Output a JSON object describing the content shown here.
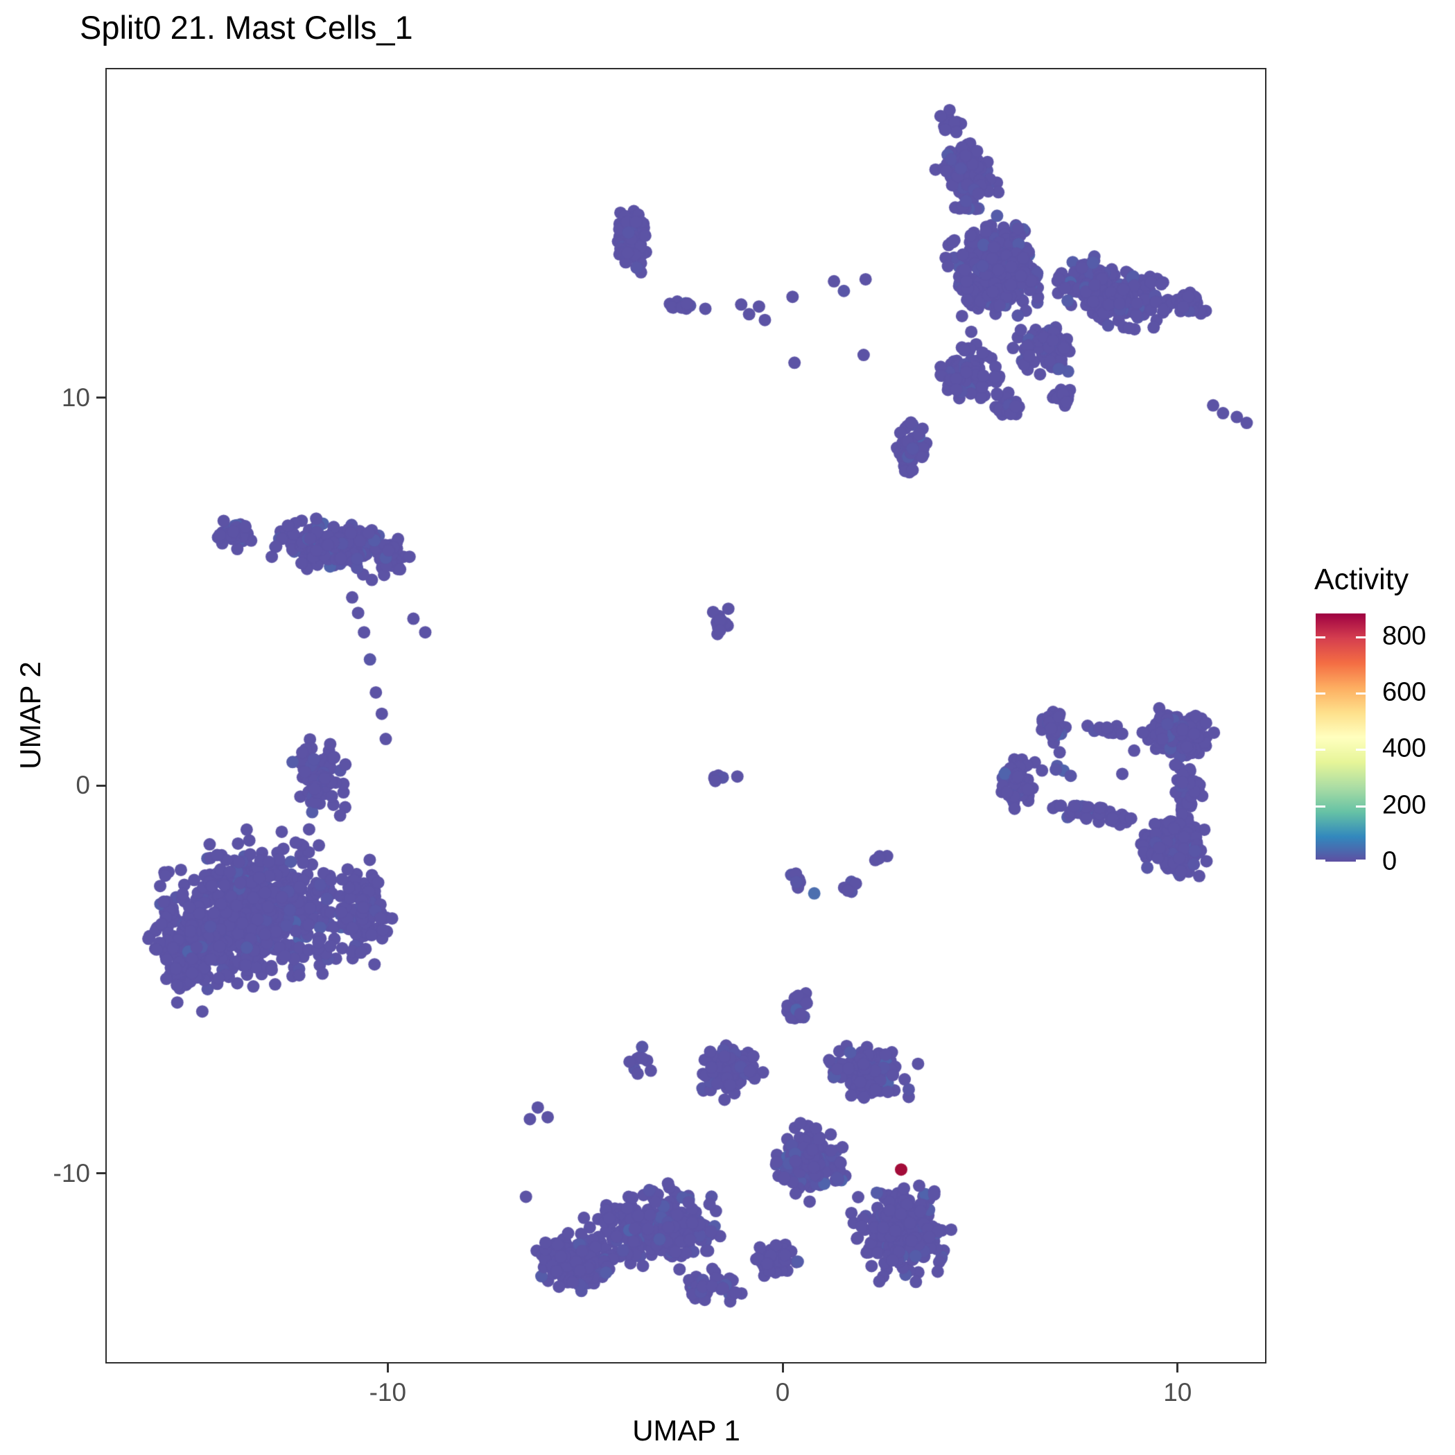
{
  "title": "Split0 21. Mast Cells_1",
  "chart_data": {
    "type": "scatter",
    "title": "Split0 21. Mast Cells_1",
    "xlabel": "UMAP 1",
    "ylabel": "UMAP 2",
    "xlim": [
      -17.15,
      12.25
    ],
    "ylim": [
      -14.9,
      18.5
    ],
    "x_ticks": [
      -10,
      0,
      10
    ],
    "y_ticks": [
      10,
      0,
      -10
    ],
    "grid": false,
    "point_radius_px": 9,
    "point_color_base": "#5C53A5",
    "point_color_variants": [
      "#5C53A5",
      "#5956A7",
      "#555CA9",
      "#5063AC"
    ],
    "legend": {
      "title": "Activity",
      "position": "right",
      "min": 0,
      "max": 880,
      "ticks": [
        800,
        600,
        400,
        200,
        0
      ],
      "colors": [
        "#5E4FA2",
        "#3288BD",
        "#66C2A5",
        "#ABDDA4",
        "#E6F598",
        "#FFFFBF",
        "#FEE08B",
        "#FDAE61",
        "#F46D43",
        "#D53E4F",
        "#9E0142"
      ]
    },
    "clusters": [
      {
        "id": "top-right-tip",
        "cx": 4.3,
        "cy": 17.1,
        "rx": 0.4,
        "ry": 0.4,
        "rot": 0,
        "n": 14
      },
      {
        "id": "top-right-spike",
        "cx": 4.7,
        "cy": 15.7,
        "rx": 0.8,
        "ry": 1.2,
        "rot": 15,
        "n": 140
      },
      {
        "id": "top-right-core",
        "cx": 5.4,
        "cy": 13.3,
        "rx": 1.4,
        "ry": 1.6,
        "rot": 10,
        "n": 340
      },
      {
        "id": "top-right-east",
        "cx": 8.3,
        "cy": 12.7,
        "rx": 1.8,
        "ry": 1.0,
        "rot": -18,
        "n": 240
      },
      {
        "id": "top-right-far-east",
        "cx": 10.4,
        "cy": 12.4,
        "rx": 0.7,
        "ry": 0.5,
        "rot": -25,
        "n": 28
      },
      {
        "id": "top-right-lower",
        "cx": 4.7,
        "cy": 10.6,
        "rx": 1.0,
        "ry": 0.9,
        "rot": 0,
        "n": 95
      },
      {
        "id": "top-right-lower-east",
        "cx": 6.6,
        "cy": 11.3,
        "rx": 0.95,
        "ry": 0.85,
        "rot": -10,
        "n": 80
      },
      {
        "id": "anvil-left",
        "cx": 3.2,
        "cy": 8.7,
        "rx": 0.55,
        "ry": 0.8,
        "rot": 0,
        "n": 45
      },
      {
        "id": "anvil-mid",
        "cx": 5.7,
        "cy": 9.8,
        "rx": 0.5,
        "ry": 0.45,
        "rot": 0,
        "n": 24
      },
      {
        "id": "anvil-right",
        "cx": 7.1,
        "cy": 10.0,
        "rx": 0.4,
        "ry": 0.35,
        "rot": 0,
        "n": 14
      },
      {
        "id": "top-mid-blob",
        "cx": -3.85,
        "cy": 14.1,
        "rx": 0.55,
        "ry": 1.0,
        "rot": 5,
        "n": 95
      },
      {
        "id": "top-mid-chain",
        "cx": -2.6,
        "cy": 12.4,
        "rx": 0.8,
        "ry": 0.16,
        "rot": -8,
        "n": 13
      },
      {
        "id": "center-blob",
        "cx": -1.6,
        "cy": 4.2,
        "rx": 0.32,
        "ry": 0.42,
        "rot": 0,
        "n": 14
      },
      {
        "id": "center-row",
        "cx": -1.5,
        "cy": 0.2,
        "rx": 0.55,
        "ry": 0.12,
        "rot": 0,
        "n": 6
      },
      {
        "id": "mid-chain",
        "cx": 0.35,
        "cy": -2.4,
        "rx": 0.45,
        "ry": 0.22,
        "rot": -35,
        "n": 6
      },
      {
        "id": "mid-trio",
        "cx": 1.75,
        "cy": -2.7,
        "rx": 0.33,
        "ry": 0.3,
        "rot": 0,
        "n": 5
      },
      {
        "id": "mid-pair",
        "cx": 2.4,
        "cy": -1.85,
        "rx": 0.26,
        "ry": 0.35,
        "rot": -40,
        "n": 4
      },
      {
        "id": "left-top-main",
        "cx": -11.2,
        "cy": 6.1,
        "rx": 2.2,
        "ry": 0.8,
        "rot": -8,
        "n": 240
      },
      {
        "id": "left-top-claw",
        "cx": -13.9,
        "cy": 6.5,
        "rx": 0.65,
        "ry": 0.5,
        "rot": 20,
        "n": 40
      },
      {
        "id": "left-bottom-main",
        "cx": -13.4,
        "cy": -3.3,
        "rx": 2.9,
        "ry": 2.4,
        "rot": 15,
        "n": 620
      },
      {
        "id": "left-bottom-dense",
        "cx": -15.0,
        "cy": -4.3,
        "rx": 1.2,
        "ry": 1.4,
        "rot": 0,
        "n": 130
      },
      {
        "id": "left-bottom-arm-up",
        "cx": -11.7,
        "cy": 0.2,
        "rx": 0.85,
        "ry": 1.3,
        "rot": 10,
        "n": 85
      },
      {
        "id": "left-bottom-east",
        "cx": -10.6,
        "cy": -3.3,
        "rx": 0.9,
        "ry": 1.5,
        "rot": 0,
        "n": 90
      },
      {
        "id": "ring-left",
        "cx": 5.95,
        "cy": 0.1,
        "rx": 0.6,
        "ry": 0.8,
        "rot": 0,
        "n": 70
      },
      {
        "id": "ring-top-left",
        "cx": 6.85,
        "cy": 1.5,
        "rx": 0.45,
        "ry": 0.5,
        "rot": 0,
        "n": 30
      },
      {
        "id": "ring-top-chain",
        "cx": 8.2,
        "cy": 1.4,
        "rx": 0.85,
        "ry": 0.2,
        "rot": -8,
        "n": 14
      },
      {
        "id": "ring-top-right",
        "cx": 10.0,
        "cy": 1.3,
        "rx": 1.1,
        "ry": 0.8,
        "rot": 0,
        "n": 150
      },
      {
        "id": "ring-right-edge",
        "cx": 10.2,
        "cy": 0.0,
        "rx": 0.5,
        "ry": 0.75,
        "rot": 0,
        "n": 55
      },
      {
        "id": "ring-bottom-right",
        "cx": 9.9,
        "cy": -1.5,
        "rx": 1.1,
        "ry": 1.0,
        "rot": 0,
        "n": 180
      },
      {
        "id": "ring-bottom-chain",
        "cx": 7.8,
        "cy": -0.75,
        "rx": 1.6,
        "ry": 0.3,
        "rot": -12,
        "n": 40
      },
      {
        "id": "ring-interior",
        "cx": 7.0,
        "cy": 0.5,
        "rx": 0.5,
        "ry": 0.45,
        "rot": 0,
        "n": 6
      },
      {
        "id": "bottom-spike",
        "cx": 0.35,
        "cy": -5.8,
        "rx": 0.45,
        "ry": 0.6,
        "rot": 0,
        "n": 25
      },
      {
        "id": "bottom-upper-left",
        "cx": -1.4,
        "cy": -7.4,
        "rx": 1.05,
        "ry": 0.8,
        "rot": 20,
        "n": 90
      },
      {
        "id": "bottom-ul-arm",
        "cx": -3.6,
        "cy": -7.1,
        "rx": 0.45,
        "ry": 0.55,
        "rot": 0,
        "n": 9
      },
      {
        "id": "bottom-upper-right",
        "cx": 2.2,
        "cy": -7.4,
        "rx": 1.3,
        "ry": 0.9,
        "rot": -15,
        "n": 115
      },
      {
        "id": "bottom-center",
        "cx": 0.7,
        "cy": -9.7,
        "rx": 1.3,
        "ry": 1.1,
        "rot": 0,
        "n": 160
      },
      {
        "id": "bottom-left-arm",
        "cx": -3.3,
        "cy": -11.4,
        "rx": 2.1,
        "ry": 1.3,
        "rot": 8,
        "n": 260
      },
      {
        "id": "bottom-far-left",
        "cx": -5.3,
        "cy": -12.3,
        "rx": 1.25,
        "ry": 1.0,
        "rot": 0,
        "n": 135
      },
      {
        "id": "bottom-left-low",
        "cx": -1.8,
        "cy": -12.9,
        "rx": 0.9,
        "ry": 0.55,
        "rot": 0,
        "n": 50
      },
      {
        "id": "bottom-right-arm",
        "cx": 3.0,
        "cy": -11.5,
        "rx": 1.55,
        "ry": 1.55,
        "rot": 0,
        "n": 240
      },
      {
        "id": "bottom-mid-low",
        "cx": -0.2,
        "cy": -12.2,
        "rx": 0.7,
        "ry": 0.6,
        "rot": 0,
        "n": 45
      }
    ],
    "singles": [
      [
        0.25,
        12.6
      ],
      [
        0.3,
        10.9
      ],
      [
        -1.05,
        12.4
      ],
      [
        -0.85,
        12.15
      ],
      [
        -0.6,
        12.35
      ],
      [
        -0.45,
        12.0
      ],
      [
        1.3,
        13.0
      ],
      [
        1.55,
        12.75
      ],
      [
        2.1,
        13.05
      ],
      [
        2.05,
        11.1
      ],
      [
        -10.9,
        4.85
      ],
      [
        -10.75,
        4.45
      ],
      [
        -10.6,
        3.95
      ],
      [
        -10.45,
        3.25
      ],
      [
        -10.3,
        2.4
      ],
      [
        -10.15,
        1.85
      ],
      [
        -10.05,
        1.2
      ],
      [
        -9.35,
        4.3
      ],
      [
        -9.05,
        3.95
      ],
      [
        10.9,
        9.8
      ],
      [
        11.15,
        9.6
      ],
      [
        11.5,
        9.5
      ],
      [
        11.75,
        9.35
      ],
      [
        -6.2,
        -8.3
      ],
      [
        -5.95,
        -8.55
      ],
      [
        -6.4,
        -8.6
      ],
      [
        -6.5,
        -10.6
      ],
      [
        8.9,
        0.9
      ],
      [
        8.6,
        0.3
      ]
    ],
    "highlight_points": [
      {
        "x": 3.0,
        "y": -9.9,
        "activity": 850,
        "color": "#A30C39"
      },
      {
        "x": 0.8,
        "y": -2.78,
        "activity": 60,
        "color": "#4D6FAF"
      }
    ]
  }
}
